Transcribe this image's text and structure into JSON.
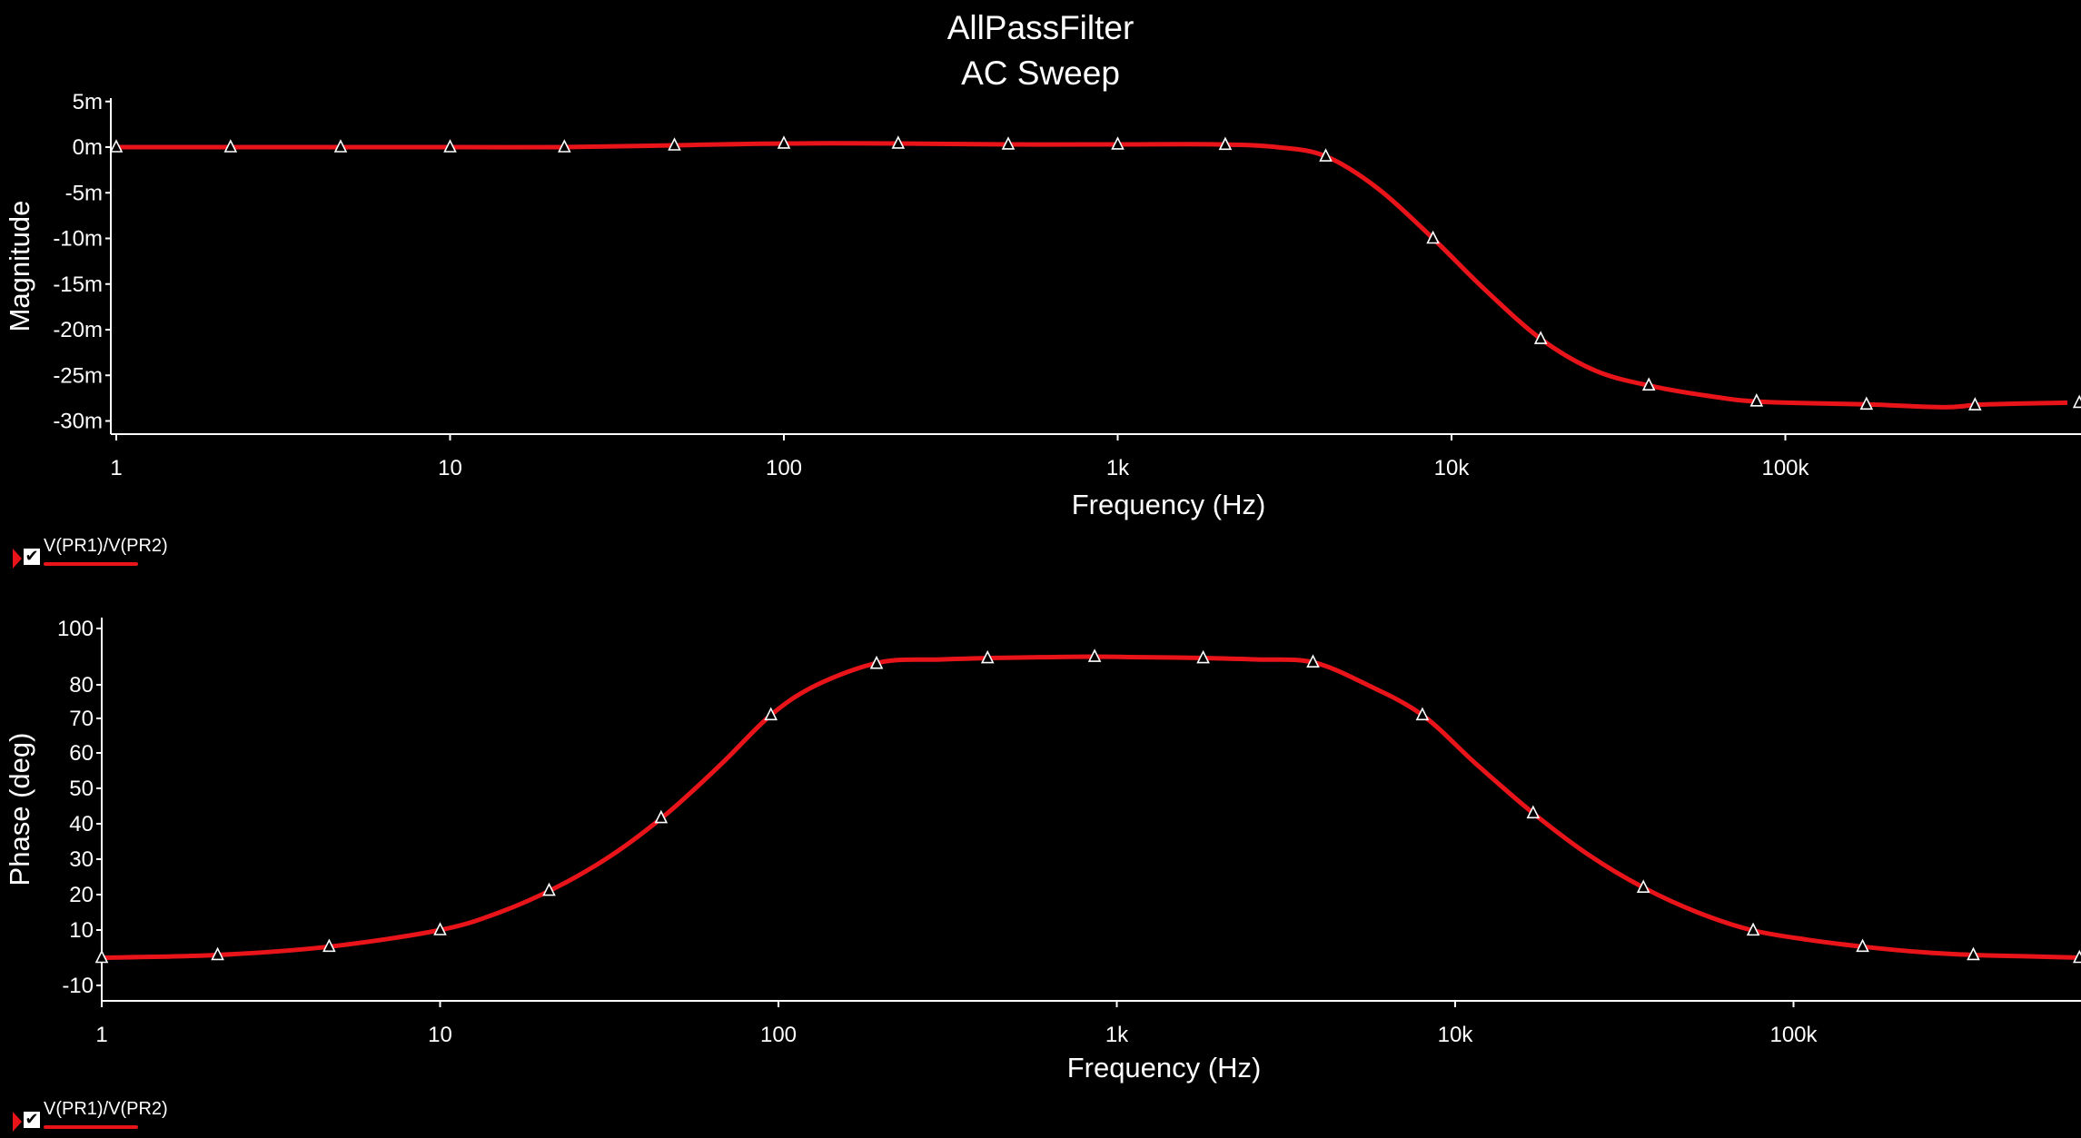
{
  "title": {
    "line1": "AllPassFilter",
    "line2": "AC Sweep"
  },
  "trace_color": "#e8141a",
  "legend": [
    {
      "label": "V(PR1)/V(PR2)",
      "checked": true,
      "check_glyph": "✔"
    },
    {
      "label": "V(PR1)/V(PR2)",
      "checked": true,
      "check_glyph": "✔"
    }
  ],
  "chart_data": [
    {
      "type": "line",
      "xlabel": "Frequency (Hz)",
      "ylabel": "Magnitude",
      "x_scale": "log",
      "xlim": [
        1,
        700000
      ],
      "ylim": [
        -31,
        5
      ],
      "x_ticks": [
        {
          "value": 1,
          "label": "1"
        },
        {
          "value": 10,
          "label": "10"
        },
        {
          "value": 100,
          "label": "100"
        },
        {
          "value": 1000,
          "label": "1k"
        },
        {
          "value": 10000,
          "label": "10k"
        },
        {
          "value": 100000,
          "label": "100k"
        }
      ],
      "y_ticks": [
        {
          "value": 5,
          "label": "5m"
        },
        {
          "value": 0,
          "label": "0m"
        },
        {
          "value": -5,
          "label": "-5m"
        },
        {
          "value": -10,
          "label": "-10m"
        },
        {
          "value": -15,
          "label": "-15m"
        },
        {
          "value": -20,
          "label": "-20m"
        },
        {
          "value": -25,
          "label": "-25m"
        },
        {
          "value": -30,
          "label": "-30m"
        }
      ],
      "series": [
        {
          "x": [
            1,
            2.2,
            4.7,
            10,
            22,
            47,
            100,
            220,
            470,
            1000,
            2000,
            3000,
            4200,
            6000,
            8800,
            12500,
            18500,
            27000,
            40000,
            60000,
            85000,
            180000,
            300000,
            390000,
            700000
          ],
          "y": [
            0,
            0,
            0,
            0,
            0,
            0.2,
            0.4,
            0.4,
            0.3,
            0.3,
            0.3,
            0,
            -1.0,
            -4.5,
            -10.0,
            -15.5,
            -21.0,
            -24.5,
            -26.2,
            -27.3,
            -27.9,
            -28.2,
            -28.5,
            -28.2,
            -28.0
          ]
        }
      ],
      "markers_x": [
        1,
        2.2,
        4.7,
        10,
        22,
        47,
        100,
        220,
        470,
        1000,
        2100,
        4200,
        8800,
        18500,
        39000,
        82000,
        175000,
        370000,
        760000
      ]
    },
    {
      "type": "line",
      "xlabel": "Frequency (Hz)",
      "ylabel": "Phase (deg)",
      "x_scale": "log",
      "xlim": [
        1,
        700000
      ],
      "ylim": [
        -15,
        100
      ],
      "x_ticks": [
        {
          "value": 1,
          "label": "1"
        },
        {
          "value": 10,
          "label": "10"
        },
        {
          "value": 100,
          "label": "100"
        },
        {
          "value": 1000,
          "label": "1k"
        },
        {
          "value": 10000,
          "label": "10k"
        },
        {
          "value": 100000,
          "label": "100k"
        }
      ],
      "y_ticks": [
        {
          "value": 100,
          "label": "100"
        },
        {
          "value": 80,
          "label": "80"
        },
        {
          "value": 70,
          "label": "70"
        },
        {
          "value": 60,
          "label": "60"
        },
        {
          "value": 50,
          "label": "50"
        },
        {
          "value": 40,
          "label": "40"
        },
        {
          "value": 30,
          "label": "30"
        },
        {
          "value": 20,
          "label": "20"
        },
        {
          "value": 10,
          "label": "10"
        },
        {
          "value": -10,
          "label": "-10"
        }
      ],
      "series": [
        {
          "x": [
            1,
            2.2,
            4.7,
            10,
            15,
            22,
            32,
            47,
            68,
            95,
            130,
            200,
            300,
            420,
            600,
            850,
            1200,
            1800,
            2600,
            3800,
            5500,
            8000,
            11500,
            17000,
            25000,
            36000,
            52000,
            75000,
            110000,
            160000,
            240000,
            340000,
            500000,
            700000
          ],
          "y": [
            0,
            1,
            4,
            10,
            15,
            22,
            31,
            43,
            57,
            71,
            80,
            88,
            89,
            89.5,
            89.8,
            90,
            89.8,
            89.5,
            89,
            88,
            80,
            71,
            57,
            43,
            31,
            22,
            15,
            10,
            6.5,
            4,
            2,
            1,
            0.5,
            0
          ]
        }
      ],
      "markers_x": [
        1,
        2.2,
        4.7,
        10,
        21,
        45,
        95,
        195,
        415,
        860,
        1800,
        3800,
        8000,
        17000,
        36000,
        76000,
        160000,
        340000,
        700000
      ]
    }
  ]
}
